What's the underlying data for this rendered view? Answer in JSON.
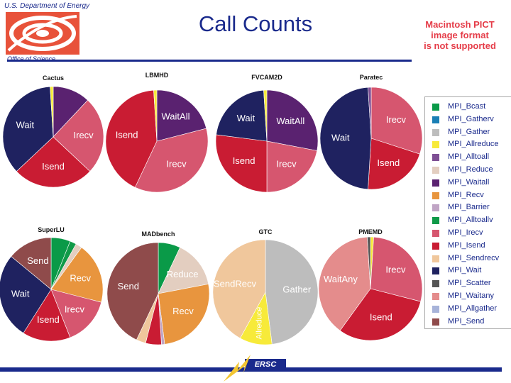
{
  "header": {
    "org": "U.S. Department of Energy",
    "office": "Office of Science",
    "title": "Call Counts",
    "pict_placeholder": [
      "Macintosh PICT",
      "image format",
      "is not supported"
    ],
    "footer_logo": "ERSC"
  },
  "chart_data": {
    "type": "pie",
    "legend_placement": "right",
    "legend": [
      {
        "name": "MPI_Bcast",
        "color": "#0a9a48"
      },
      {
        "name": "MPI_Gatherv",
        "color": "#1a7fb5"
      },
      {
        "name": "MPI_Gather",
        "color": "#bdbdbd"
      },
      {
        "name": "MPI_Allreduce",
        "color": "#f7ea3a"
      },
      {
        "name": "MPI_Alltoall",
        "color": "#7e4f94"
      },
      {
        "name": "MPI_Reduce",
        "color": "#e3cec0"
      },
      {
        "name": "MPI_Waitall",
        "color": "#5a2270"
      },
      {
        "name": "MPI_Recv",
        "color": "#e8953e"
      },
      {
        "name": "MPI_Barrier",
        "color": "#c0a5c5"
      },
      {
        "name": "MPI_Alltoallv",
        "color": "#109a48"
      },
      {
        "name": "MPI_Irecv",
        "color": "#d6566f"
      },
      {
        "name": "MPI_Isend",
        "color": "#c91c33"
      },
      {
        "name": "MPI_Sendrecv",
        "color": "#f0c79c"
      },
      {
        "name": "MPI_Wait",
        "color": "#1f2260"
      },
      {
        "name": "MPI_Scatter",
        "color": "#555555"
      },
      {
        "name": "MPI_Waitany",
        "color": "#e48c8c"
      },
      {
        "name": "MPI_Allgather",
        "color": "#a7b3d9"
      },
      {
        "name": "MPI_Send",
        "color": "#8f4b4b"
      }
    ],
    "pies": [
      {
        "title": "Cactus",
        "slices": [
          {
            "name": "MPI_Waitall",
            "value": 12
          },
          {
            "name": "MPI_Irecv",
            "value": 25,
            "label": "Irecv"
          },
          {
            "name": "MPI_Isend",
            "value": 26,
            "label": "Isend"
          },
          {
            "name": "MPI_Wait",
            "value": 36,
            "label": "Wait"
          },
          {
            "name": "MPI_Allreduce",
            "value": 1
          }
        ]
      },
      {
        "title": "LBMHD",
        "slices": [
          {
            "name": "MPI_Waitall",
            "value": 21,
            "label": "WaitAll"
          },
          {
            "name": "MPI_Irecv",
            "value": 36,
            "label": "Irecv"
          },
          {
            "name": "MPI_Isend",
            "value": 42,
            "label": "Isend"
          },
          {
            "name": "MPI_Allreduce",
            "value": 1
          }
        ]
      },
      {
        "title": "FVCAM2D",
        "slices": [
          {
            "name": "MPI_Waitall",
            "value": 28,
            "label": "WaitAll"
          },
          {
            "name": "MPI_Irecv",
            "value": 22,
            "label": "Irecv"
          },
          {
            "name": "MPI_Isend",
            "value": 27,
            "label": "Isend"
          },
          {
            "name": "MPI_Wait",
            "value": 22,
            "label": "Wait"
          },
          {
            "name": "MPI_Allreduce",
            "value": 1
          }
        ]
      },
      {
        "title": "Paratec",
        "slices": [
          {
            "name": "MPI_Irecv",
            "value": 30,
            "label": "Irecv"
          },
          {
            "name": "MPI_Isend",
            "value": 21,
            "label": "Isend"
          },
          {
            "name": "MPI_Wait",
            "value": 48,
            "label": "Wait"
          },
          {
            "name": "MPI_Alltoall",
            "value": 1
          }
        ]
      },
      {
        "title": "SuperLU",
        "slices": [
          {
            "name": "MPI_Bcast",
            "value": 6
          },
          {
            "name": "MPI_Alltoallv",
            "value": 2
          },
          {
            "name": "MPI_Reduce",
            "value": 2
          },
          {
            "name": "MPI_Recv",
            "value": 19,
            "label": "Recv"
          },
          {
            "name": "MPI_Irecv",
            "value": 15,
            "label": "Irecv"
          },
          {
            "name": "MPI_Isend",
            "value": 15,
            "label": "Isend"
          },
          {
            "name": "MPI_Wait",
            "value": 27,
            "label": "Wait"
          },
          {
            "name": "MPI_Send",
            "value": 14,
            "label": "Send"
          }
        ]
      },
      {
        "title": "MADbench",
        "slices": [
          {
            "name": "MPI_Bcast",
            "value": 7
          },
          {
            "name": "MPI_Reduce",
            "value": 15,
            "label": "Reduce"
          },
          {
            "name": "MPI_Recv",
            "value": 26,
            "label": "Recv"
          },
          {
            "name": "MPI_Barrier",
            "value": 1
          },
          {
            "name": "MPI_Isend",
            "value": 5
          },
          {
            "name": "MPI_Sendrecv",
            "value": 3
          },
          {
            "name": "MPI_Send",
            "value": 43,
            "label": "Send"
          }
        ]
      },
      {
        "title": "GTC",
        "slices": [
          {
            "name": "MPI_Gather",
            "value": 48,
            "label": "Gather"
          },
          {
            "name": "MPI_Allreduce",
            "value": 10,
            "label": "Allreduce"
          },
          {
            "name": "MPI_Sendrecv",
            "value": 42,
            "label": "SendRecv"
          }
        ]
      },
      {
        "title": "PMEMD",
        "slices": [
          {
            "name": "MPI_Allreduce",
            "value": 1
          },
          {
            "name": "MPI_Irecv",
            "value": 28,
            "label": "Irecv"
          },
          {
            "name": "MPI_Isend",
            "value": 31,
            "label": "Isend"
          },
          {
            "name": "MPI_Waitany",
            "value": 39,
            "label": "WaitAny"
          },
          {
            "name": "MPI_Scatter",
            "value": 1
          }
        ]
      }
    ]
  }
}
